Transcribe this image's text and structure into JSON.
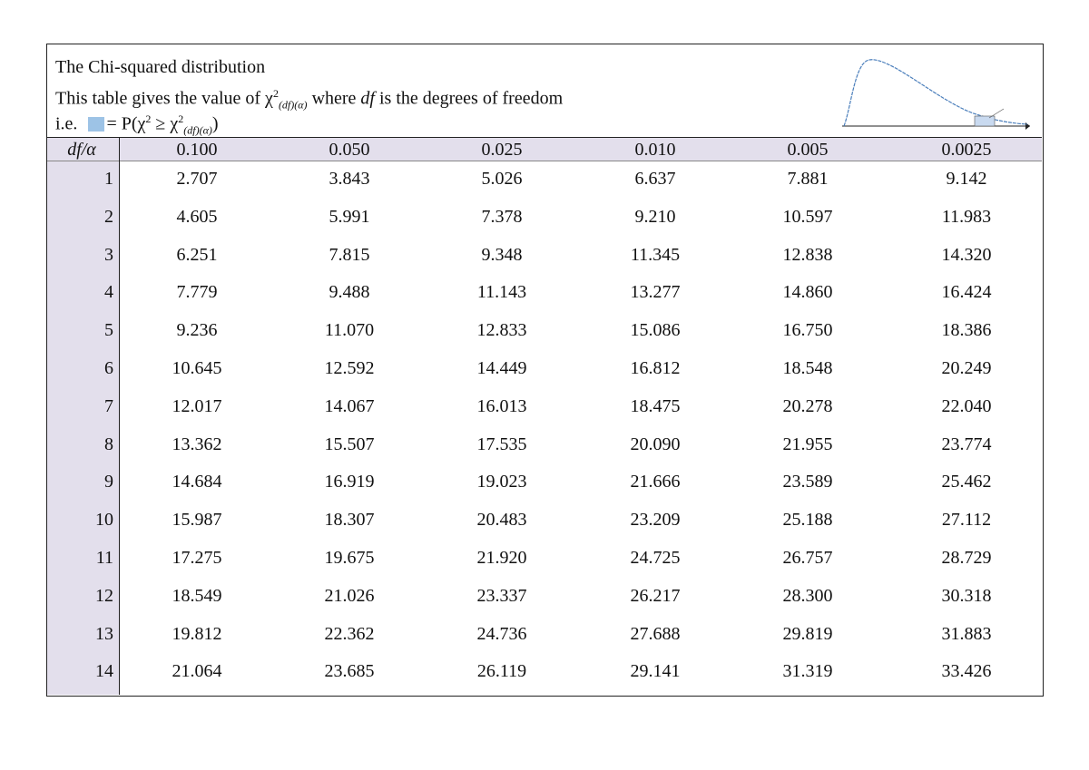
{
  "header": {
    "title": "The Chi-squared distribution",
    "line2": [
      "This table gives the value of ",
      "χ",
      "2",
      "(df)(α)",
      " where ",
      "df",
      " is the degrees of freedom"
    ],
    "line3": [
      "i.e.",
      "= P(χ",
      "2",
      " ≥ χ",
      "2",
      "(df)(α)",
      ")"
    ]
  },
  "table": {
    "columns": [
      "df/α",
      "0.100",
      "0.050",
      "0.025",
      "0.010",
      "0.005",
      "0.0025"
    ],
    "rows": [
      [
        1,
        "2.707",
        "3.843",
        "5.026",
        "6.637",
        "7.881",
        "9.142"
      ],
      [
        2,
        "4.605",
        "5.991",
        "7.378",
        "9.210",
        "10.597",
        "11.983"
      ],
      [
        3,
        "6.251",
        "7.815",
        "9.348",
        "11.345",
        "12.838",
        "14.320"
      ],
      [
        4,
        "7.779",
        "9.488",
        "11.143",
        "13.277",
        "14.860",
        "16.424"
      ],
      [
        5,
        "9.236",
        "11.070",
        "12.833",
        "15.086",
        "16.750",
        "18.386"
      ],
      [
        6,
        "10.645",
        "12.592",
        "14.449",
        "16.812",
        "18.548",
        "20.249"
      ],
      [
        7,
        "12.017",
        "14.067",
        "16.013",
        "18.475",
        "20.278",
        "22.040"
      ],
      [
        8,
        "13.362",
        "15.507",
        "17.535",
        "20.090",
        "21.955",
        "23.774"
      ],
      [
        9,
        "14.684",
        "16.919",
        "19.023",
        "21.666",
        "23.589",
        "25.462"
      ],
      [
        10,
        "15.987",
        "18.307",
        "20.483",
        "23.209",
        "25.188",
        "27.112"
      ],
      [
        11,
        "17.275",
        "19.675",
        "21.920",
        "24.725",
        "26.757",
        "28.729"
      ],
      [
        12,
        "18.549",
        "21.026",
        "23.337",
        "26.217",
        "28.300",
        "30.318"
      ],
      [
        13,
        "19.812",
        "22.362",
        "24.736",
        "27.688",
        "29.819",
        "31.883"
      ],
      [
        14,
        "21.064",
        "23.685",
        "26.119",
        "29.141",
        "31.319",
        "33.426"
      ]
    ]
  }
}
